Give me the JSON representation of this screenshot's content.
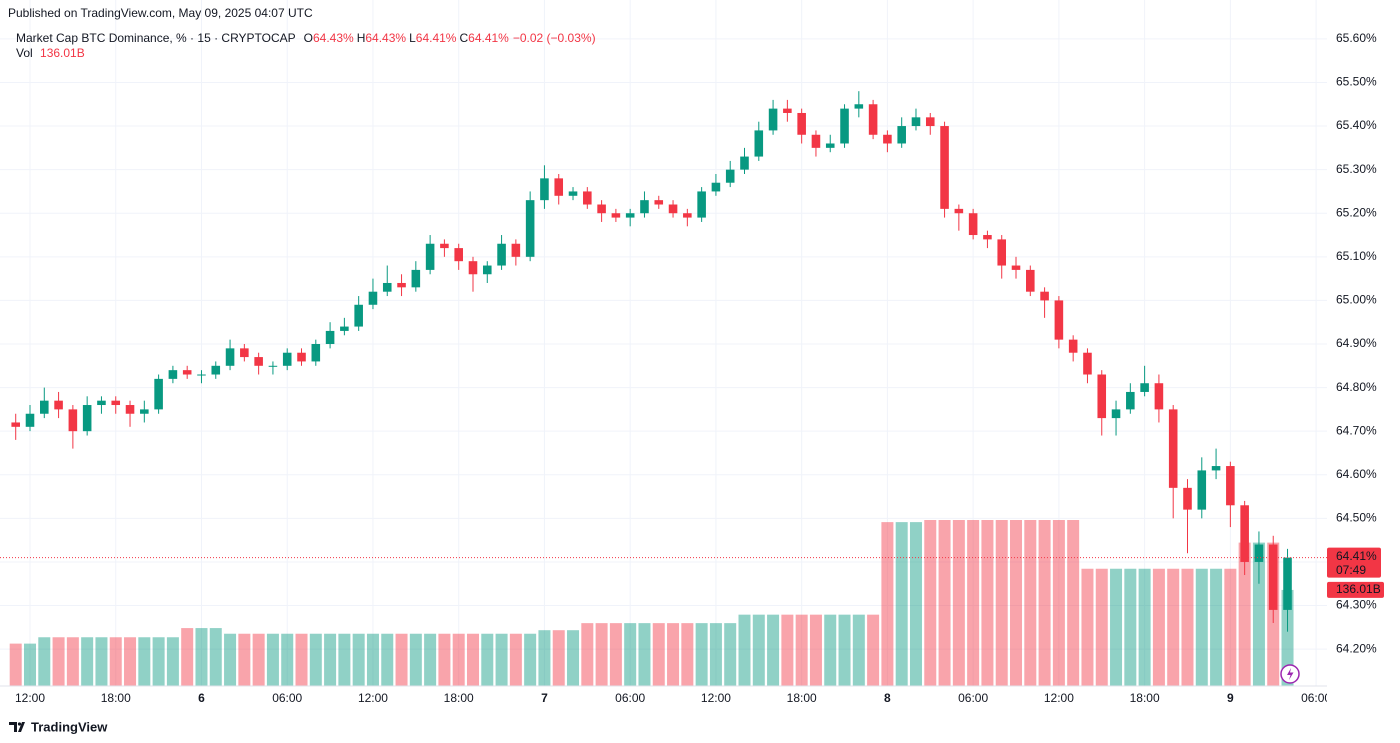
{
  "published": "Published on TradingView.com, May 09, 2025 04:07 UTC",
  "brand": "TradingView",
  "chart_data": {
    "type": "candlestick",
    "title": "Market Cap BTC Dominance, % · 15 · CRYPTOCAP",
    "legend_ohlc": [
      {
        "label": "O",
        "value": "64.43%"
      },
      {
        "label": "H",
        "value": "64.43%"
      },
      {
        "label": "L",
        "value": "64.41%"
      },
      {
        "label": "C",
        "value": "64.41%"
      }
    ],
    "change": "−0.02 (−0.03%)",
    "volume_title": "Vol",
    "volume_label": "136.01B",
    "last_price_label": "64.41%",
    "countdown": "07:49",
    "up_color": "#089981",
    "down_color": "#f23645",
    "grid": true,
    "ylim": [
      64.12,
      65.68
    ],
    "yticks": [
      {
        "value": 64.2,
        "label": "64.20%"
      },
      {
        "value": 64.3,
        "label": "64.30%"
      },
      {
        "value": 64.4,
        "label": "64.40%"
      },
      {
        "value": 64.5,
        "label": "64.50%"
      },
      {
        "value": 64.6,
        "label": "64.60%"
      },
      {
        "value": 64.7,
        "label": "64.70%"
      },
      {
        "value": 64.8,
        "label": "64.80%"
      },
      {
        "value": 64.9,
        "label": "64.90%"
      },
      {
        "value": 65.0,
        "label": "65.00%"
      },
      {
        "value": 65.1,
        "label": "65.10%"
      },
      {
        "value": 65.2,
        "label": "65.20%"
      },
      {
        "value": 65.3,
        "label": "65.30%"
      },
      {
        "value": 65.4,
        "label": "65.40%"
      },
      {
        "value": 65.5,
        "label": "65.50%"
      },
      {
        "value": 65.6,
        "label": "65.60%"
      }
    ],
    "categories": [
      null,
      "12:00",
      null,
      null,
      null,
      null,
      null,
      "18:00",
      null,
      null,
      null,
      null,
      null,
      "6",
      null,
      null,
      null,
      null,
      null,
      "06:00",
      null,
      null,
      null,
      null,
      null,
      "12:00",
      null,
      null,
      null,
      null,
      null,
      "18:00",
      null,
      null,
      null,
      null,
      null,
      "7",
      null,
      null,
      null,
      null,
      null,
      "06:00",
      null,
      null,
      null,
      null,
      null,
      "12:00",
      null,
      null,
      null,
      null,
      null,
      "18:00",
      null,
      null,
      null,
      null,
      null,
      "8",
      null,
      null,
      null,
      null,
      null,
      "06:00",
      null,
      null,
      null,
      null,
      null,
      "12:00",
      null,
      null,
      null,
      null,
      null,
      "18:00",
      null,
      null,
      null,
      null,
      null,
      "9",
      null,
      null,
      null,
      null,
      null,
      "06:00"
    ],
    "open": [
      64.72,
      64.71,
      64.74,
      64.77,
      64.75,
      64.7,
      64.76,
      64.77,
      64.76,
      64.74,
      64.75,
      64.82,
      64.84,
      64.83,
      64.83,
      64.85,
      64.89,
      64.87,
      64.85,
      64.85,
      64.88,
      64.86,
      64.9,
      64.93,
      64.94,
      64.99,
      65.02,
      65.04,
      65.03,
      65.07,
      65.13,
      65.12,
      65.09,
      65.06,
      65.08,
      65.13,
      65.1,
      65.23,
      65.28,
      65.24,
      65.25,
      65.22,
      65.2,
      65.19,
      65.2,
      65.23,
      65.22,
      65.2,
      65.19,
      65.25,
      65.27,
      65.3,
      65.33,
      65.39,
      65.44,
      65.43,
      65.38,
      65.35,
      65.36,
      65.44,
      65.45,
      65.38,
      65.36,
      65.4,
      65.42,
      65.4,
      65.21,
      65.2,
      65.15,
      65.14,
      65.08,
      65.07,
      65.02,
      65.0,
      64.91,
      64.88,
      64.83,
      64.73,
      64.75,
      64.79,
      64.81,
      64.75,
      64.57,
      64.52,
      64.61,
      64.62,
      64.53,
      64.4,
      64.44,
      64.29,
      null,
      null
    ],
    "high": [
      64.74,
      64.76,
      64.8,
      64.79,
      64.76,
      64.78,
      64.78,
      64.78,
      64.77,
      64.77,
      64.83,
      64.85,
      64.85,
      64.84,
      64.86,
      64.91,
      64.9,
      64.88,
      64.86,
      64.89,
      64.89,
      64.91,
      64.95,
      64.96,
      65.01,
      65.05,
      65.08,
      65.06,
      65.09,
      65.15,
      65.14,
      65.13,
      65.1,
      65.09,
      65.15,
      65.14,
      65.25,
      65.31,
      65.29,
      65.26,
      65.26,
      65.23,
      65.21,
      65.21,
      65.25,
      65.24,
      65.23,
      65.21,
      65.26,
      65.29,
      65.32,
      65.35,
      65.41,
      65.46,
      65.46,
      65.44,
      65.39,
      65.38,
      65.45,
      65.48,
      65.46,
      65.39,
      65.42,
      65.44,
      65.43,
      65.41,
      65.22,
      65.21,
      65.16,
      65.15,
      65.1,
      65.08,
      65.03,
      65.01,
      64.92,
      64.89,
      64.84,
      64.77,
      64.81,
      64.85,
      64.83,
      64.76,
      64.59,
      64.64,
      64.66,
      64.63,
      64.54,
      64.47,
      64.46,
      64.43,
      null,
      null
    ],
    "low": [
      64.68,
      64.7,
      64.73,
      64.73,
      64.66,
      64.69,
      64.74,
      64.74,
      64.71,
      64.72,
      64.74,
      64.81,
      64.82,
      64.81,
      64.82,
      64.84,
      64.86,
      64.83,
      64.83,
      64.84,
      64.85,
      64.85,
      64.89,
      64.92,
      64.93,
      64.98,
      65.01,
      65.01,
      65.02,
      65.06,
      65.1,
      65.07,
      65.02,
      65.04,
      65.07,
      65.08,
      65.09,
      65.21,
      65.22,
      65.23,
      65.21,
      65.18,
      65.18,
      65.17,
      65.19,
      65.21,
      65.19,
      65.17,
      65.18,
      65.24,
      65.26,
      65.29,
      65.32,
      65.38,
      65.41,
      65.36,
      65.33,
      65.34,
      65.35,
      65.42,
      65.37,
      65.34,
      65.35,
      65.39,
      65.38,
      65.19,
      65.16,
      65.14,
      65.12,
      65.05,
      65.05,
      65.01,
      64.96,
      64.89,
      64.86,
      64.81,
      64.69,
      64.69,
      64.74,
      64.78,
      64.72,
      64.5,
      64.42,
      64.5,
      64.59,
      64.48,
      64.37,
      64.35,
      64.26,
      64.24,
      null,
      null
    ],
    "close": [
      64.71,
      64.74,
      64.77,
      64.75,
      64.7,
      64.76,
      64.77,
      64.76,
      64.74,
      64.75,
      64.82,
      64.84,
      64.83,
      64.83,
      64.85,
      64.89,
      64.87,
      64.85,
      64.85,
      64.88,
      64.86,
      64.9,
      64.93,
      64.94,
      64.99,
      65.02,
      65.04,
      65.03,
      65.07,
      65.13,
      65.12,
      65.09,
      65.06,
      65.08,
      65.13,
      65.1,
      65.23,
      65.28,
      65.24,
      65.25,
      65.22,
      65.2,
      65.19,
      65.2,
      65.23,
      65.22,
      65.2,
      65.19,
      65.25,
      65.27,
      65.3,
      65.33,
      65.39,
      65.44,
      65.43,
      65.38,
      65.35,
      65.36,
      65.44,
      65.45,
      65.38,
      65.36,
      65.4,
      65.42,
      65.4,
      65.21,
      65.2,
      65.15,
      65.14,
      65.08,
      65.07,
      65.02,
      65.0,
      64.91,
      64.88,
      64.83,
      64.73,
      64.75,
      64.79,
      64.81,
      64.75,
      64.57,
      64.52,
      64.61,
      64.62,
      64.53,
      64.4,
      64.44,
      64.29,
      64.41,
      null,
      null
    ],
    "volumes": [
      60,
      60,
      69,
      69,
      69,
      69,
      69,
      69,
      69,
      69,
      69,
      69,
      82,
      82,
      82,
      74,
      74,
      74,
      74,
      74,
      74,
      74,
      74,
      74,
      74,
      74,
      74,
      74,
      74,
      74,
      74,
      74,
      74,
      74,
      74,
      74,
      74,
      79,
      79,
      79,
      89,
      89,
      89,
      89,
      89,
      89,
      89,
      89,
      89,
      89,
      89,
      101,
      101,
      101,
      101,
      101,
      101,
      101,
      101,
      101,
      101,
      232,
      232,
      232,
      235,
      235,
      235,
      235,
      235,
      235,
      235,
      235,
      235,
      235,
      235,
      166,
      166,
      166,
      166,
      166,
      166,
      166,
      166,
      166,
      166,
      166,
      203,
      203,
      203,
      136.01,
      null,
      null
    ]
  }
}
